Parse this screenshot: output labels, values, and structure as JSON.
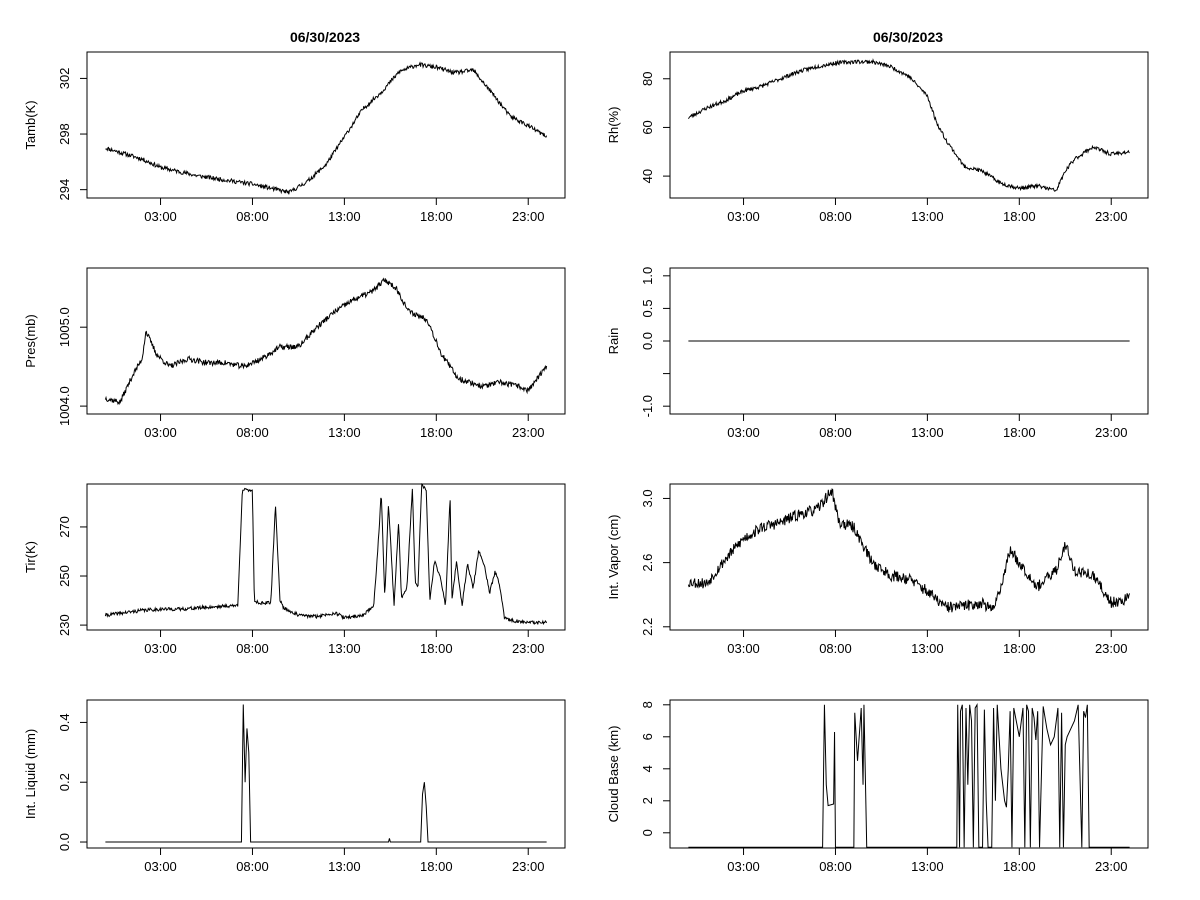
{
  "figure": {
    "date_title_left": "06/30/2023",
    "date_title_right": "06/30/2023"
  },
  "chart_data": [
    {
      "id": "tamb",
      "type": "line",
      "ylabel": "Tamb(K)",
      "xlim": [
        -1,
        25
      ],
      "ylim": [
        293.4,
        303.9
      ],
      "xticks": [
        3,
        8,
        13,
        18,
        23
      ],
      "xtick_labels": [
        "03:00",
        "08:00",
        "13:00",
        "18:00",
        "23:00"
      ],
      "yticks": [
        294,
        298,
        302
      ],
      "ytick_labels": [
        "294",
        "298",
        "302"
      ],
      "x": [
        0,
        1,
        2,
        3,
        4,
        5,
        6,
        7,
        8,
        9,
        10,
        11,
        12,
        13,
        14,
        15,
        16,
        17,
        17.5,
        18,
        19,
        20,
        21,
        22,
        23,
        24
      ],
      "y": [
        297.0,
        296.6,
        296.2,
        295.6,
        295.3,
        295.0,
        294.8,
        294.6,
        294.4,
        294.1,
        293.8,
        294.6,
        295.8,
        297.8,
        299.8,
        301.0,
        302.5,
        303.0,
        302.9,
        302.8,
        302.4,
        302.6,
        301.0,
        299.3,
        298.6,
        297.8
      ],
      "noise": 0.15,
      "seed": 11
    },
    {
      "id": "rh",
      "type": "line",
      "ylabel": "Rh(%)",
      "xlim": [
        -1,
        25
      ],
      "ylim": [
        31,
        91
      ],
      "xticks": [
        3,
        8,
        13,
        18,
        23
      ],
      "xtick_labels": [
        "03:00",
        "08:00",
        "13:00",
        "18:00",
        "23:00"
      ],
      "yticks": [
        40,
        60,
        80
      ],
      "ytick_labels": [
        "40",
        "60",
        "80"
      ],
      "x": [
        0,
        1,
        2,
        3,
        4,
        5,
        6,
        7,
        8,
        9,
        10,
        11,
        12,
        13,
        13.5,
        14,
        15,
        16,
        17,
        18,
        19,
        20,
        20.5,
        21,
        22,
        23,
        24
      ],
      "y": [
        64,
        68,
        71,
        75,
        77,
        80,
        83,
        85,
        86.5,
        87,
        87,
        85,
        81,
        73,
        62,
        55,
        44,
        42,
        37,
        35,
        36,
        34,
        42,
        47,
        52,
        49,
        50
      ],
      "noise": 0.8,
      "seed": 23
    },
    {
      "id": "pres",
      "type": "line",
      "ylabel": "Pres(mb)",
      "xlim": [
        -1,
        25
      ],
      "ylim": [
        1003.9,
        1005.75
      ],
      "xticks": [
        3,
        8,
        13,
        18,
        23
      ],
      "xtick_labels": [
        "03:00",
        "08:00",
        "13:00",
        "18:00",
        "23:00"
      ],
      "yticks": [
        1004.0,
        1005.0
      ],
      "ytick_labels": [
        "1004.0",
        "1005.0"
      ],
      "x": [
        0,
        0.8,
        1.5,
        2.0,
        2.2,
        2.8,
        3.5,
        4.5,
        5.5,
        6.5,
        7.5,
        8.5,
        9.5,
        10.5,
        11.5,
        12.5,
        13.5,
        14.5,
        15.2,
        15.8,
        16.5,
        17.5,
        18.3,
        19.2,
        20.5,
        21.5,
        22.5,
        23.0,
        24.0
      ],
      "y": [
        1004.1,
        1004.05,
        1004.4,
        1004.6,
        1004.95,
        1004.65,
        1004.5,
        1004.6,
        1004.55,
        1004.55,
        1004.5,
        1004.6,
        1004.75,
        1004.75,
        1005.0,
        1005.2,
        1005.35,
        1005.45,
        1005.6,
        1005.5,
        1005.2,
        1005.1,
        1004.65,
        1004.35,
        1004.25,
        1004.3,
        1004.25,
        1004.2,
        1004.5
      ],
      "noise": 0.035,
      "seed": 37
    },
    {
      "id": "rain",
      "type": "line",
      "ylabel": "Rain",
      "xlim": [
        -1,
        25
      ],
      "ylim": [
        -1.12,
        1.12
      ],
      "xticks": [
        3,
        8,
        13,
        18,
        23
      ],
      "xtick_labels": [
        "03:00",
        "08:00",
        "13:00",
        "18:00",
        "23:00"
      ],
      "yticks": [
        -1.0,
        -0.5,
        0.0,
        0.5,
        1.0
      ],
      "ytick_labels": [
        "-1.0",
        "",
        "0.0",
        "0.5",
        "1.0"
      ],
      "x": [
        0,
        24
      ],
      "y": [
        0,
        0
      ],
      "noise": 0,
      "seed": 1
    },
    {
      "id": "tir",
      "type": "line",
      "ylabel": "Tir(K)",
      "xlim": [
        -1,
        25
      ],
      "ylim": [
        228,
        287.5
      ],
      "xticks": [
        3,
        8,
        13,
        18,
        23
      ],
      "xtick_labels": [
        "03:00",
        "08:00",
        "13:00",
        "18:00",
        "23:00"
      ],
      "yticks": [
        230,
        250,
        270
      ],
      "ytick_labels": [
        "230",
        "250",
        "270"
      ],
      "x": [
        0,
        1,
        2,
        3,
        4,
        5,
        6,
        7.2,
        7.45,
        7.55,
        8.0,
        8.1,
        8.4,
        9.0,
        9.25,
        9.5,
        9.7,
        10.5,
        11.5,
        12.5,
        13.0,
        14.0,
        14.6,
        14.9,
        15.0,
        15.2,
        15.4,
        15.7,
        15.95,
        16.1,
        16.4,
        16.7,
        16.85,
        17.0,
        17.2,
        17.45,
        17.65,
        17.9,
        18.2,
        18.5,
        18.75,
        18.85,
        19.1,
        19.4,
        19.7,
        20.0,
        20.3,
        20.6,
        20.9,
        21.2,
        21.45,
        21.7,
        22.0,
        22.5,
        23.0,
        23.5,
        24.0
      ],
      "y": [
        234,
        235,
        236,
        236.5,
        236.5,
        237,
        237.5,
        238,
        285,
        285,
        285,
        240,
        239,
        239,
        279,
        240,
        237,
        234,
        233.5,
        235,
        233,
        234,
        238,
        270,
        285,
        241,
        280,
        238,
        272,
        241,
        245,
        286,
        248,
        245,
        287,
        285,
        240,
        256,
        250,
        238,
        282,
        240,
        256,
        238,
        255,
        245,
        260,
        255,
        243,
        252,
        246,
        233,
        232,
        231.5,
        231,
        231,
        231
      ],
      "noise": 0.7,
      "seed": 41
    },
    {
      "id": "vapor",
      "type": "line",
      "ylabel": "Int. Vapor (cm)",
      "xlim": [
        -1,
        25
      ],
      "ylim": [
        2.18,
        3.09
      ],
      "xticks": [
        3,
        8,
        13,
        18,
        23
      ],
      "xtick_labels": [
        "03:00",
        "08:00",
        "13:00",
        "18:00",
        "23:00"
      ],
      "yticks": [
        2.2,
        2.6,
        3.0
      ],
      "ytick_labels": [
        "2.2",
        "2.6",
        "3.0"
      ],
      "x": [
        0,
        1,
        2,
        3,
        4,
        5,
        6,
        7,
        7.8,
        8.2,
        9,
        10,
        11,
        12,
        13,
        14,
        15,
        16,
        16.5,
        17,
        17.5,
        18,
        19,
        20,
        20.5,
        21,
        22,
        23,
        24
      ],
      "y": [
        2.48,
        2.47,
        2.62,
        2.75,
        2.82,
        2.85,
        2.9,
        2.93,
        3.05,
        2.85,
        2.82,
        2.6,
        2.52,
        2.5,
        2.42,
        2.32,
        2.33,
        2.35,
        2.3,
        2.45,
        2.68,
        2.6,
        2.45,
        2.55,
        2.72,
        2.55,
        2.52,
        2.35,
        2.38
      ],
      "noise": 0.035,
      "seed": 53
    },
    {
      "id": "liquid",
      "type": "line",
      "ylabel": "Int. Liquid (mm)",
      "xlim": [
        -1,
        25
      ],
      "ylim": [
        -0.02,
        0.475
      ],
      "xticks": [
        3,
        8,
        13,
        18,
        23
      ],
      "xtick_labels": [
        "03:00",
        "08:00",
        "13:00",
        "18:00",
        "23:00"
      ],
      "yticks": [
        0.0,
        0.2,
        0.4
      ],
      "ytick_labels": [
        "0.0",
        "0.2",
        "0.4"
      ],
      "x": [
        0,
        7.4,
        7.5,
        7.6,
        7.7,
        7.8,
        7.9,
        8.0,
        15.4,
        15.45,
        15.5,
        17.15,
        17.25,
        17.35,
        17.45,
        17.55,
        24.0
      ],
      "y": [
        0.0,
        0.0,
        0.46,
        0.2,
        0.38,
        0.3,
        0.0,
        0.0,
        0.0,
        0.012,
        0.0,
        0.0,
        0.16,
        0.2,
        0.12,
        0.0,
        0.0
      ],
      "noise": 0,
      "seed": 1
    },
    {
      "id": "cloudbase",
      "type": "line",
      "ylabel": "Cloud Base (km)",
      "xlim": [
        -1,
        25
      ],
      "ylim": [
        -0.95,
        8.3
      ],
      "xticks": [
        3,
        8,
        13,
        18,
        23
      ],
      "xtick_labels": [
        "03:00",
        "08:00",
        "13:00",
        "18:00",
        "23:00"
      ],
      "yticks": [
        0,
        2,
        4,
        6,
        8
      ],
      "ytick_labels": [
        "0",
        "2",
        "4",
        "6",
        "8"
      ],
      "x": [
        0,
        7.3,
        7.4,
        7.5,
        7.6,
        7.9,
        7.95,
        8.0,
        9.0,
        9.05,
        9.2,
        9.4,
        9.5,
        9.55,
        9.7,
        14.6,
        14.65,
        14.75,
        14.8,
        14.9,
        15.0,
        15.1,
        15.2,
        15.3,
        15.4,
        15.5,
        15.6,
        15.7,
        15.8,
        16.0,
        16.1,
        16.2,
        16.3,
        16.5,
        16.6,
        16.7,
        16.8,
        17.0,
        17.2,
        17.3,
        17.4,
        17.5,
        17.6,
        17.7,
        17.8,
        18.0,
        18.2,
        18.3,
        18.4,
        18.5,
        18.6,
        18.7,
        18.8,
        18.9,
        19.0,
        19.1,
        19.3,
        19.5,
        19.7,
        19.9,
        20.1,
        20.2,
        20.3,
        20.4,
        20.5,
        20.6,
        20.8,
        21.0,
        21.2,
        21.4,
        21.5,
        21.6,
        21.7,
        21.8,
        24.0
      ],
      "y": [
        -0.9,
        -0.9,
        8.0,
        3.0,
        1.7,
        1.8,
        6.3,
        -0.9,
        -0.9,
        7.5,
        4.5,
        7.8,
        3.0,
        8.0,
        -0.9,
        -0.9,
        8.0,
        -0.9,
        7.6,
        8.0,
        -0.9,
        7.8,
        3.0,
        8.0,
        7.0,
        -0.9,
        7.8,
        8.0,
        -0.9,
        -0.9,
        7.7,
        2.0,
        -0.9,
        -0.9,
        7.8,
        2.0,
        8.0,
        4.0,
        2.0,
        1.6,
        4.0,
        7.6,
        -0.9,
        7.8,
        7.2,
        6.0,
        7.8,
        -0.9,
        8.0,
        7.6,
        -0.9,
        7.8,
        7.2,
        5.8,
        7.6,
        -0.9,
        7.9,
        6.5,
        5.5,
        6.0,
        7.8,
        -0.9,
        7.5,
        -0.9,
        5.5,
        6.0,
        6.5,
        7.0,
        8.0,
        -0.9,
        7.6,
        7.2,
        8.0,
        -0.9,
        -0.9
      ],
      "noise": 0,
      "seed": 1
    }
  ]
}
